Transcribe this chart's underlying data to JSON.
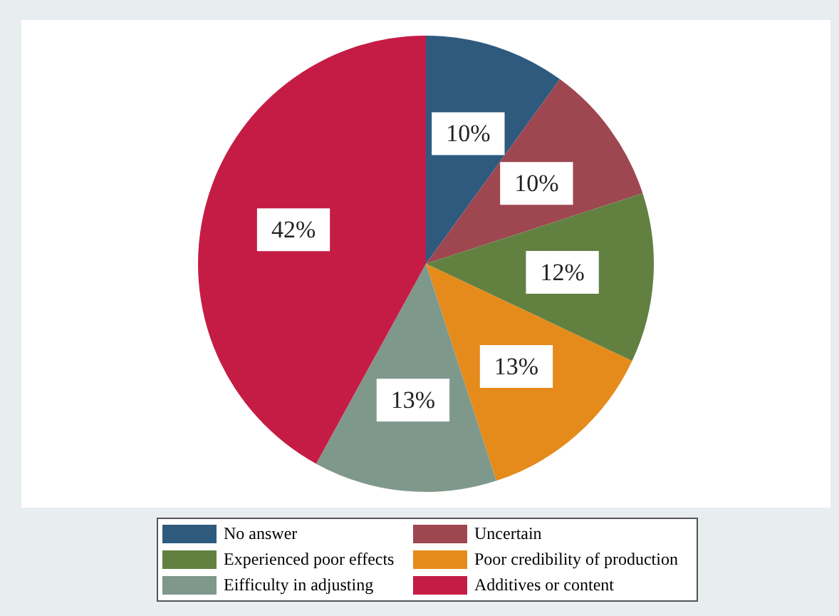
{
  "chart_data": {
    "type": "pie",
    "categories": [
      "No answer",
      "Uncertain",
      "Experienced poor effects",
      "Poor credibility of production",
      "Eifficulty in adjusting",
      "Additives or content"
    ],
    "values": [
      10,
      10,
      12,
      13,
      13,
      42
    ],
    "colors": [
      "#2e5a7e",
      "#9e4750",
      "#628141",
      "#e58b1b",
      "#7f988c",
      "#c51c45"
    ],
    "value_labels": [
      "10%",
      "10%",
      "12%",
      "13%",
      "13%",
      "42%"
    ],
    "legend": "bottom"
  }
}
